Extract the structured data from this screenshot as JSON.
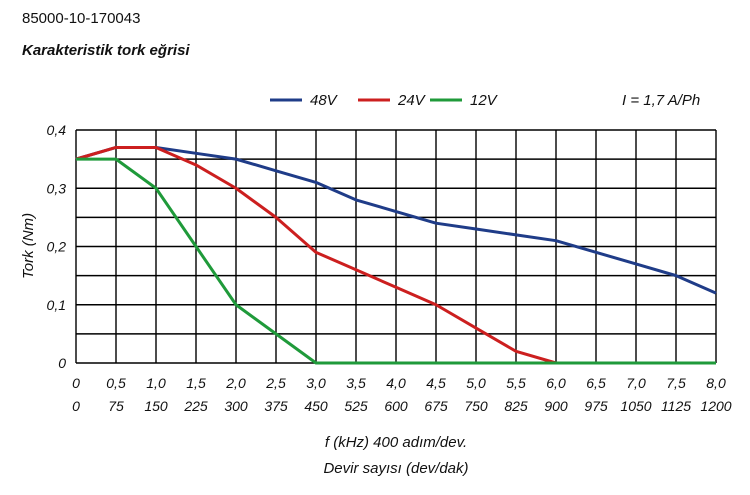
{
  "header": {
    "part_number": "85000-10-170043",
    "title": "Karakteristik tork eğrisi"
  },
  "chart_data": {
    "type": "line",
    "title": "Karakteristik tork eğrisi",
    "current_note": "I = 1,7 A/Ph",
    "ylabel": "Tork (Nm)",
    "xlabel": "f (kHz) 400 adım/dev.",
    "xlabel2": "Devir sayısı (dev/dak)",
    "xlim": [
      0,
      8
    ],
    "ylim": [
      0,
      0.4
    ],
    "grid": true,
    "legend_position": "top",
    "x_ticks": [
      "0",
      "0,5",
      "1,0",
      "1,5",
      "2,0",
      "2,5",
      "3,0",
      "3,5",
      "4,0",
      "4,5",
      "5,0",
      "5,5",
      "6,0",
      "6,5",
      "7,0",
      "7,5",
      "8,0"
    ],
    "x_ticks2": [
      "0",
      "75",
      "150",
      "225",
      "300",
      "375",
      "450",
      "525",
      "600",
      "675",
      "750",
      "825",
      "900",
      "975",
      "1050",
      "1125",
      "1200"
    ],
    "y_ticks": [
      "0",
      "0,1",
      "0,2",
      "0,3",
      "0,4"
    ],
    "series": [
      {
        "name": "48V",
        "color": "#1f3c88",
        "x": [
          0,
          0.5,
          1.0,
          1.5,
          2.0,
          2.5,
          3.0,
          3.5,
          4.0,
          4.5,
          5.0,
          5.5,
          6.0,
          6.5,
          7.0,
          7.5,
          8.0
        ],
        "y": [
          0.35,
          0.37,
          0.37,
          0.36,
          0.35,
          0.33,
          0.31,
          0.28,
          0.26,
          0.24,
          0.23,
          0.22,
          0.21,
          0.19,
          0.17,
          0.15,
          0.12
        ]
      },
      {
        "name": "24V",
        "color": "#cc1f1f",
        "x": [
          0,
          0.5,
          1.0,
          1.5,
          2.0,
          2.5,
          3.0,
          3.5,
          4.0,
          4.5,
          5.0,
          5.5,
          6.0,
          8.0
        ],
        "y": [
          0.35,
          0.37,
          0.37,
          0.34,
          0.3,
          0.25,
          0.19,
          0.16,
          0.13,
          0.1,
          0.06,
          0.02,
          0.0,
          0.0
        ]
      },
      {
        "name": "12V",
        "color": "#1f9a3a",
        "x": [
          0,
          0.5,
          1.0,
          1.5,
          2.0,
          2.5,
          3.0,
          8.0
        ],
        "y": [
          0.35,
          0.35,
          0.3,
          0.2,
          0.1,
          0.05,
          0.0,
          0.0
        ]
      }
    ]
  }
}
